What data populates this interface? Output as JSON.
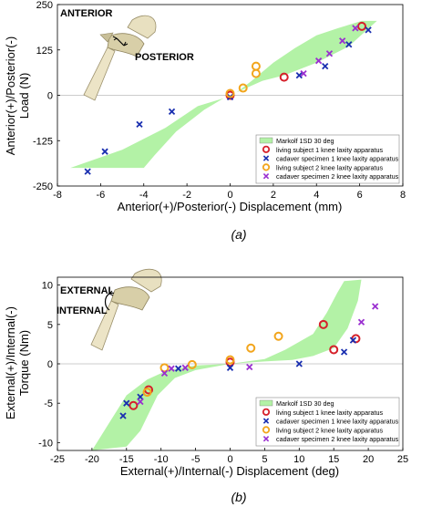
{
  "chart_data": [
    {
      "type": "scatter",
      "panel_label": "(a)",
      "xlabel": "Anterior(+)/Posterior(-) Displacement (mm)",
      "ylabel": "Anterior(+)/Posterior(-) Load (N)",
      "ylabel_lines": [
        "Anterior(+)/Posterior(-)",
        "Load (N)"
      ],
      "xlim": [
        -8,
        8
      ],
      "ylim": [
        -250,
        250
      ],
      "xticks": [
        -8,
        -6,
        -4,
        -2,
        0,
        2,
        4,
        6,
        8
      ],
      "yticks": [
        -250,
        -125,
        0,
        125,
        250
      ],
      "legend_position": "bottom-right",
      "annotations": [
        "ANTERIOR",
        "POSTERIOR"
      ],
      "band": {
        "name": "Markolf 1SD 30 deg",
        "color": "#b3f2a6",
        "upper": [
          [
            -7.4,
            -200
          ],
          [
            -5,
            -150
          ],
          [
            -3,
            -90
          ],
          [
            -1.5,
            -30
          ],
          [
            -0.3,
            -8
          ],
          [
            0,
            0
          ],
          [
            0.3,
            8
          ],
          [
            1,
            40
          ],
          [
            2,
            90
          ],
          [
            3,
            130
          ],
          [
            4,
            165
          ],
          [
            5,
            185
          ],
          [
            6.1,
            205
          ],
          [
            6.8,
            205
          ]
        ],
        "lower": [
          [
            -7.4,
            -200
          ],
          [
            -6.5,
            -200
          ],
          [
            -4,
            -200
          ],
          [
            -3.5,
            -165
          ],
          [
            -2.5,
            -100
          ],
          [
            -1.2,
            -40
          ],
          [
            -0.3,
            -8
          ],
          [
            0,
            0
          ],
          [
            0.3,
            8
          ],
          [
            1.5,
            40
          ],
          [
            2.5,
            55
          ],
          [
            4,
            90
          ],
          [
            5.5,
            135
          ],
          [
            6.8,
            205
          ]
        ]
      },
      "series": [
        {
          "name": "living subject 1 knee laxity apparatus",
          "marker": "circle",
          "color": "#d6202a",
          "points": [
            [
              0,
              0
            ],
            [
              2.5,
              50
            ],
            [
              6.1,
              190
            ]
          ]
        },
        {
          "name": "cadaver specimen 1 knee laxity apparatus",
          "marker": "x",
          "color": "#1a2fb0",
          "points": [
            [
              -6.6,
              -210
            ],
            [
              -5.8,
              -155
            ],
            [
              -4.2,
              -80
            ],
            [
              -2.7,
              -45
            ],
            [
              0,
              -5
            ],
            [
              3.2,
              55
            ],
            [
              4.4,
              80
            ],
            [
              5.5,
              140
            ],
            [
              6.4,
              180
            ]
          ]
        },
        {
          "name": "living subject 2 knee laxity apparatus",
          "marker": "circle",
          "color": "#f2a51c",
          "points": [
            [
              0,
              5
            ],
            [
              0.6,
              20
            ],
            [
              1.2,
              60
            ],
            [
              1.2,
              80
            ]
          ]
        },
        {
          "name": "cadaver specimen 2 knee laxity apparatus",
          "marker": "x",
          "color": "#9a2fd0",
          "points": [
            [
              3.4,
              60
            ],
            [
              4.1,
              95
            ],
            [
              4.6,
              115
            ],
            [
              5.2,
              150
            ],
            [
              5.8,
              185
            ]
          ]
        }
      ]
    },
    {
      "type": "scatter",
      "panel_label": "(b)",
      "xlabel": "External(+)/Internal(-) Displacement (deg)",
      "ylabel": "External(+)/Internal(-) Torque (Nm)",
      "ylabel_lines": [
        "External(+)/Internal(-)",
        "Torque (Nm)"
      ],
      "xlim": [
        -25,
        25
      ],
      "ylim": [
        -11,
        11
      ],
      "xticks": [
        -25,
        -20,
        -15,
        -10,
        -5,
        0,
        5,
        10,
        15,
        20,
        25
      ],
      "yticks": [
        -10,
        -5,
        0,
        5,
        10
      ],
      "legend_position": "bottom-right",
      "annotations": [
        "EXTERNAL",
        "INTERNAL"
      ],
      "band": {
        "name": "Markolf 1SD 30 deg",
        "color": "#b3f2a6",
        "upper": [
          [
            -20,
            -11
          ],
          [
            -17.5,
            -7.5
          ],
          [
            -15,
            -4
          ],
          [
            -12,
            -2
          ],
          [
            -9,
            -0.8
          ],
          [
            -5,
            -0.2
          ],
          [
            0,
            0
          ],
          [
            5,
            0.6
          ],
          [
            8,
            1.8
          ],
          [
            12,
            3.8
          ],
          [
            14,
            6.5
          ],
          [
            15.5,
            9
          ],
          [
            16.5,
            10.5
          ],
          [
            16.5,
            10.5
          ],
          [
            19,
            10.7
          ]
        ],
        "lower": [
          [
            -20,
            -11
          ],
          [
            -15,
            -10.5
          ],
          [
            -13,
            -8.5
          ],
          [
            -10.5,
            -4
          ],
          [
            -8,
            -1.8
          ],
          [
            -5,
            -0.8
          ],
          [
            0,
            0
          ],
          [
            5,
            0.3
          ],
          [
            9,
            0.5
          ],
          [
            12,
            1
          ],
          [
            15,
            2
          ],
          [
            17,
            4.5
          ],
          [
            18.5,
            8
          ],
          [
            19,
            10.7
          ]
        ]
      },
      "series": [
        {
          "name": "living subject 1 knee laxity apparatus",
          "marker": "circle",
          "color": "#d6202a",
          "points": [
            [
              -14,
              -5.3
            ],
            [
              -11.8,
              -3.3
            ],
            [
              0,
              0.2
            ],
            [
              13.5,
              5
            ],
            [
              15,
              1.8
            ],
            [
              18.2,
              3.2
            ]
          ]
        },
        {
          "name": "cadaver specimen 1 knee laxity apparatus",
          "marker": "x",
          "color": "#1a2fb0",
          "points": [
            [
              -15.5,
              -6.6
            ],
            [
              -15,
              -5
            ],
            [
              -13,
              -4.2
            ],
            [
              -7.5,
              -0.6
            ],
            [
              0,
              -0.5
            ],
            [
              10,
              0
            ],
            [
              16.5,
              1.5
            ],
            [
              17.8,
              3
            ]
          ]
        },
        {
          "name": "living subject 2 knee laxity apparatus",
          "marker": "circle",
          "color": "#f2a51c",
          "points": [
            [
              -12,
              -3.6
            ],
            [
              -9.5,
              -0.5
            ],
            [
              -5.5,
              -0.1
            ],
            [
              0,
              0.5
            ],
            [
              3,
              2
            ],
            [
              7,
              3.5
            ]
          ]
        },
        {
          "name": "cadaver specimen 2 knee laxity apparatus",
          "marker": "x",
          "color": "#9a2fd0",
          "points": [
            [
              -13,
              -4.8
            ],
            [
              -9.5,
              -1.2
            ],
            [
              -8.5,
              -0.6
            ],
            [
              -6.5,
              -0.5
            ],
            [
              2.8,
              -0.4
            ],
            [
              19,
              5.3
            ],
            [
              21,
              7.3
            ]
          ]
        }
      ]
    }
  ]
}
